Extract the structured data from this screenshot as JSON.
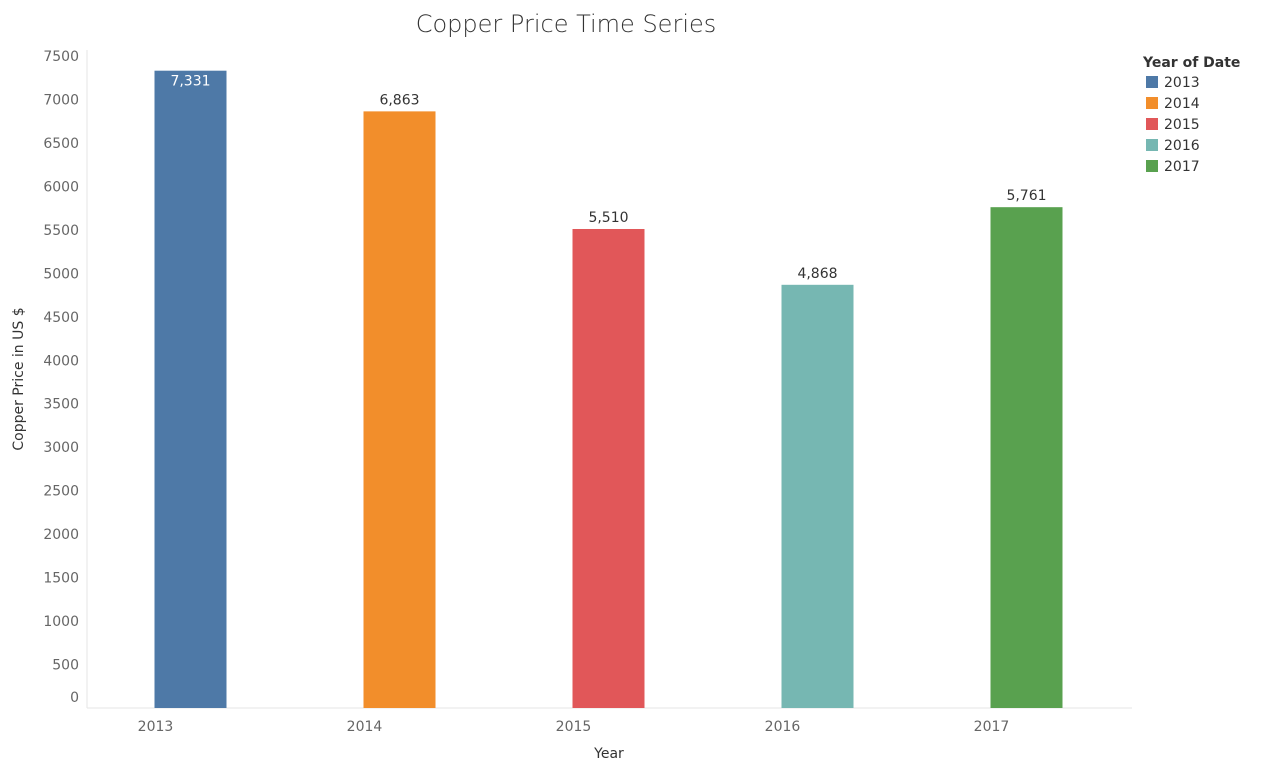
{
  "chart_data": {
    "type": "bar",
    "title": "Copper Price Time Series",
    "xlabel": "Year",
    "ylabel": "Copper Price in US $",
    "categories": [
      "2013",
      "2014",
      "2015",
      "2016",
      "2017"
    ],
    "values": [
      7331,
      6863,
      5510,
      4868,
      5761
    ],
    "data_labels": [
      "7,331",
      "6,863",
      "5,510",
      "4,868",
      "5,761"
    ],
    "colors": [
      "#4e79a7",
      "#f28e2b",
      "#e15759",
      "#76b7b2",
      "#59a14f"
    ],
    "ylim": [
      0,
      7500
    ],
    "yticks": [
      0,
      500,
      1000,
      1500,
      2000,
      2500,
      3000,
      3500,
      4000,
      4500,
      5000,
      5500,
      6000,
      6500,
      7000,
      7500
    ],
    "grid": false,
    "legend": {
      "title": "Year of Date",
      "placement": "right",
      "entries": [
        "2013",
        "2014",
        "2015",
        "2016",
        "2017"
      ]
    }
  }
}
